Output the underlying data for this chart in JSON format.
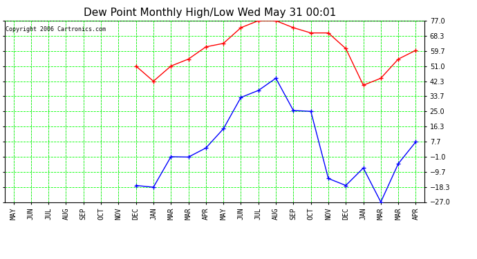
{
  "title": "Dew Point Monthly High/Low Wed May 31 00:01",
  "copyright": "Copyright 2006 Cartronics.com",
  "x_labels": [
    "MAY",
    "JUN",
    "JUL",
    "AUG",
    "SEP",
    "OCT",
    "NOV",
    "DEC",
    "JAN",
    "MAR",
    "MAR",
    "APR",
    "MAY",
    "JUN",
    "JUL",
    "AUG",
    "SEP",
    "OCT",
    "NOV",
    "DEC",
    "JAN",
    "MAR",
    "MAR",
    "APR"
  ],
  "high_values": [
    null,
    null,
    null,
    null,
    null,
    null,
    null,
    51.0,
    42.3,
    51.0,
    55.0,
    62.0,
    64.0,
    73.0,
    77.0,
    77.0,
    73.0,
    70.0,
    70.0,
    61.0,
    40.0,
    44.0,
    55.0,
    60.0
  ],
  "low_values": [
    null,
    null,
    null,
    null,
    null,
    null,
    null,
    -17.5,
    -18.5,
    -1.0,
    -1.2,
    4.0,
    15.0,
    33.0,
    37.0,
    44.0,
    25.5,
    25.0,
    -13.5,
    -17.5,
    -7.5,
    -27.0,
    -5.0,
    7.5
  ],
  "y_ticks": [
    77.0,
    68.3,
    59.7,
    51.0,
    42.3,
    33.7,
    25.0,
    16.3,
    7.7,
    -1.0,
    -9.7,
    -18.3,
    -27.0
  ],
  "y_min": -27.0,
  "y_max": 77.0,
  "bg_color": "#ffffff",
  "plot_bg_color": "#ffffff",
  "grid_color": "#00ff00",
  "high_color": "#ff0000",
  "low_color": "#0000ff",
  "title_fontsize": 11,
  "copyright_fontsize": 6,
  "tick_fontsize": 7
}
